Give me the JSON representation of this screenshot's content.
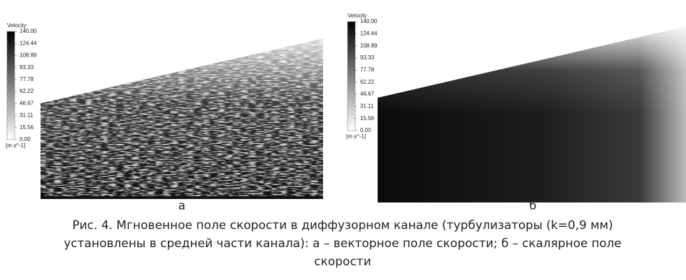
{
  "figure": {
    "panels": [
      {
        "label": "а",
        "colorbar": {
          "title": "Velocity",
          "unit": "[m s^-1]",
          "ticks": [
            {
              "value": 140,
              "label": "140.00"
            },
            {
              "value": 124.44,
              "label": "124.44"
            },
            {
              "value": 108.89,
              "label": "108.89"
            },
            {
              "value": 93.33,
              "label": "93.33"
            },
            {
              "value": 77.78,
              "label": "77.78"
            },
            {
              "value": 62.22,
              "label": "62.22"
            },
            {
              "value": 46.67,
              "label": "46.67"
            },
            {
              "value": 31.11,
              "label": "31.11"
            },
            {
              "value": 15.56,
              "label": "15.56"
            },
            {
              "value": 0,
              "label": "0.00"
            }
          ]
        }
      },
      {
        "label": "б",
        "colorbar": {
          "title": "Velocity",
          "unit": "[m s^-1]",
          "ticks": [
            {
              "value": 140,
              "label": "140.00"
            },
            {
              "value": 124.44,
              "label": "124.44"
            },
            {
              "value": 108.89,
              "label": "108.89"
            },
            {
              "value": 93.33,
              "label": "93.33"
            },
            {
              "value": 77.78,
              "label": "77.78"
            },
            {
              "value": 62.22,
              "label": "62.22"
            },
            {
              "value": 46.67,
              "label": "46.67"
            },
            {
              "value": 31.11,
              "label": "31.11"
            },
            {
              "value": 15.56,
              "label": "15.56"
            },
            {
              "value": 0,
              "label": "0.00"
            }
          ]
        }
      }
    ],
    "caption": [
      "Рис. 4. Мгновенное поле скорости в диффузорном канале (турбулизаторы (k=0,9 мм)",
      "установлены в средней части канала): а – векторное поле скорости; б – скалярное поле",
      "скорости"
    ]
  }
}
